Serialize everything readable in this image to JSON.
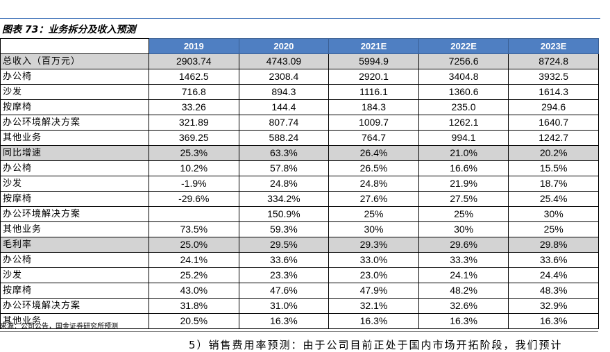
{
  "caption": "图表 73：业务拆分及收入预测",
  "columns": [
    "2019",
    "2020",
    "2021E",
    "2022E",
    "2023E"
  ],
  "rows": [
    {
      "label": "总收入（百万元）",
      "shaded": true,
      "values": [
        "2903.74",
        "4743.09",
        "5994.9",
        "7256.6",
        "8724.8"
      ]
    },
    {
      "label": "办公椅",
      "shaded": false,
      "values": [
        "1462.5",
        "2308.4",
        "2920.1",
        "3404.8",
        "3932.5"
      ]
    },
    {
      "label": "沙发",
      "shaded": false,
      "values": [
        "716.8",
        "894.3",
        "1116.1",
        "1360.6",
        "1614.3"
      ]
    },
    {
      "label": "按摩椅",
      "shaded": false,
      "values": [
        "33.26",
        "144.4",
        "184.3",
        "235.0",
        "294.6"
      ]
    },
    {
      "label": "办公环境解决方案",
      "shaded": false,
      "values": [
        "321.89",
        "807.74",
        "1009.7",
        "1262.1",
        "1640.7"
      ]
    },
    {
      "label": "其他业务",
      "shaded": false,
      "values": [
        "369.25",
        "588.24",
        "764.7",
        "994.1",
        "1242.7"
      ]
    },
    {
      "label": "同比增速",
      "shaded": true,
      "values": [
        "25.3%",
        "63.3%",
        "26.4%",
        "21.0%",
        "20.2%"
      ]
    },
    {
      "label": "办公椅",
      "shaded": false,
      "values": [
        "10.2%",
        "57.8%",
        "26.5%",
        "16.6%",
        "15.5%"
      ]
    },
    {
      "label": "沙发",
      "shaded": false,
      "values": [
        "-1.9%",
        "24.8%",
        "24.8%",
        "21.9%",
        "18.7%"
      ]
    },
    {
      "label": "按摩椅",
      "shaded": false,
      "values": [
        "-29.6%",
        "334.2%",
        "27.6%",
        "27.5%",
        "25.4%"
      ]
    },
    {
      "label": "办公环境解决方案",
      "shaded": false,
      "values": [
        "",
        "150.9%",
        "25%",
        "25%",
        "30%"
      ]
    },
    {
      "label": "其他业务",
      "shaded": false,
      "values": [
        "73.5%",
        "59.3%",
        "30%",
        "30%",
        "25%"
      ]
    },
    {
      "label": "毛利率",
      "shaded": true,
      "values": [
        "25.0%",
        "29.5%",
        "29.3%",
        "29.6%",
        "29.8%"
      ]
    },
    {
      "label": "办公椅",
      "shaded": false,
      "values": [
        "24.1%",
        "33.6%",
        "33.0%",
        "33.3%",
        "33.6%"
      ]
    },
    {
      "label": "沙发",
      "shaded": false,
      "values": [
        "25.2%",
        "23.3%",
        "23.0%",
        "24.1%",
        "24.4%"
      ]
    },
    {
      "label": "按摩椅",
      "shaded": false,
      "values": [
        "43.0%",
        "47.6%",
        "47.9%",
        "48.2%",
        "48.3%"
      ]
    },
    {
      "label": "办公环境解决方案",
      "shaded": false,
      "values": [
        "31.8%",
        "31.0%",
        "32.1%",
        "32.6%",
        "32.9%"
      ]
    },
    {
      "label": "其他业务",
      "shaded": false,
      "values": [
        "20.5%",
        "16.3%",
        "16.3%",
        "16.3%",
        "16.3%"
      ]
    }
  ],
  "source": "来源：公司公告，国金证券研究所预测",
  "next_paragraph": "5）销售费用率预测：由于公司目前正处于国内市场开拓阶段，我们预计",
  "colors": {
    "header_bg": "#4f7fc2",
    "header_text": "#ffffff",
    "shaded_row_bg": "#d3d3d3",
    "rule": "#3b6fb6"
  }
}
